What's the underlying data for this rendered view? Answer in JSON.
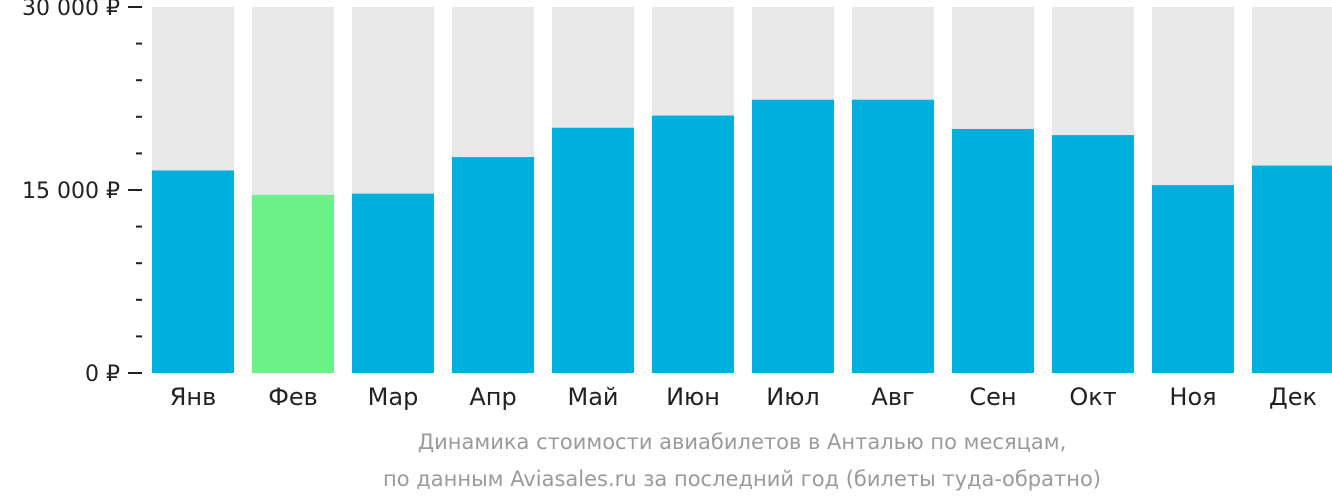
{
  "colors": {
    "bar": "#00b0dc",
    "bar_highlight": "#6af289",
    "track": "#e8e8e8",
    "axis": "#222222"
  },
  "caption": {
    "line1": "Динамика стоимости авиабилетов в Анталью по месяцам,",
    "line2": "по данным Aviasales.ru за последний год (билеты туда-обратно)"
  },
  "chart_data": {
    "type": "bar",
    "categories": [
      "Янв",
      "Фев",
      "Мар",
      "Апр",
      "Май",
      "Июн",
      "Июл",
      "Авг",
      "Сен",
      "Окт",
      "Ноя",
      "Дек"
    ],
    "values": [
      16600,
      14600,
      14700,
      17700,
      20100,
      21100,
      22400,
      22400,
      20000,
      19500,
      15400,
      17000
    ],
    "highlight_index": 1,
    "ylim": [
      0,
      30000
    ],
    "y_ticks": [
      0,
      15000,
      30000
    ],
    "y_tick_labels": [
      "0 ₽",
      "15 000 ₽",
      "30 000 ₽"
    ],
    "minor_ticks_per_major": 5,
    "title": "",
    "xlabel": "",
    "ylabel": "",
    "grid": false
  }
}
